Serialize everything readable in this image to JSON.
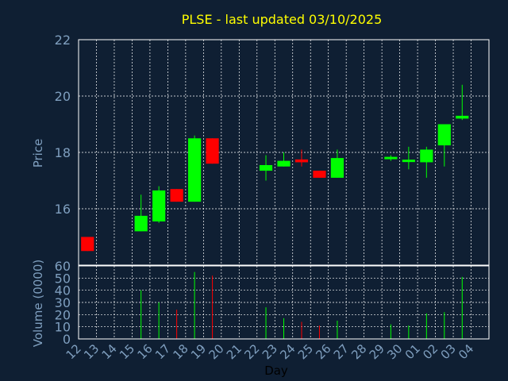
{
  "chart_data": {
    "type": "candlestick",
    "title": "PLSE - last updated 03/10/2025",
    "xlabel": "Day",
    "ylabel_price": "Price",
    "ylabel_volume": "Volume (0000)",
    "price_ylim": [
      14,
      22
    ],
    "price_yticks": [
      16,
      18,
      20,
      22
    ],
    "volume_ylim": [
      0,
      60
    ],
    "volume_yticks": [
      0,
      10,
      20,
      30,
      40,
      50,
      60
    ],
    "grid": true,
    "colors": {
      "background": "#0f1f33",
      "frame": "#ffffff",
      "grid": "#ffffff",
      "title": "#ffff00",
      "label": "#7f9fbf",
      "up": "#00ff00",
      "down": "#ff0000"
    },
    "days": [
      "12",
      "13",
      "14",
      "15",
      "16",
      "17",
      "18",
      "19",
      "20",
      "21",
      "22",
      "23",
      "24",
      "25",
      "26",
      "27",
      "28",
      "29",
      "30",
      "01",
      "02",
      "03",
      "04"
    ],
    "candles": [
      {
        "day": "12",
        "open": 15.0,
        "high": 15.0,
        "low": 14.5,
        "close": 14.5,
        "volume": null
      },
      {
        "day": "15",
        "open": 15.2,
        "high": 16.5,
        "low": 15.2,
        "close": 15.75,
        "volume": 40
      },
      {
        "day": "16",
        "open": 15.55,
        "high": 16.8,
        "low": 15.5,
        "close": 16.65,
        "volume": 30
      },
      {
        "day": "17",
        "open": 16.7,
        "high": 16.7,
        "low": 16.25,
        "close": 16.25,
        "volume": 24
      },
      {
        "day": "18",
        "open": 16.25,
        "high": 18.6,
        "low": 16.25,
        "close": 18.5,
        "volume": 55
      },
      {
        "day": "19",
        "open": 18.5,
        "high": 18.5,
        "low": 17.6,
        "close": 17.6,
        "volume": 52
      },
      {
        "day": "22",
        "open": 17.35,
        "high": 17.9,
        "low": 17.0,
        "close": 17.55,
        "volume": 26
      },
      {
        "day": "23",
        "open": 17.5,
        "high": 18.0,
        "low": 17.5,
        "close": 17.7,
        "volume": 17
      },
      {
        "day": "24",
        "open": 17.75,
        "high": 18.1,
        "low": 17.5,
        "close": 17.65,
        "volume": 14
      },
      {
        "day": "25",
        "open": 17.35,
        "high": 17.35,
        "low": 17.1,
        "close": 17.1,
        "volume": 11
      },
      {
        "day": "26",
        "open": 17.1,
        "high": 18.1,
        "low": 17.1,
        "close": 17.8,
        "volume": 15
      },
      {
        "day": "29",
        "open": 17.8,
        "high": 17.9,
        "low": 17.7,
        "close": 17.8,
        "volume": 12
      },
      {
        "day": "30",
        "open": 17.7,
        "high": 18.2,
        "low": 17.4,
        "close": 17.7,
        "volume": 11
      },
      {
        "day": "01",
        "open": 17.65,
        "high": 18.2,
        "low": 17.1,
        "close": 18.1,
        "volume": 21
      },
      {
        "day": "02",
        "open": 18.25,
        "high": 19.0,
        "low": 17.5,
        "close": 19.0,
        "volume": 22
      },
      {
        "day": "03",
        "open": 19.2,
        "high": 20.4,
        "low": 19.15,
        "close": 19.3,
        "volume": 51
      }
    ]
  }
}
